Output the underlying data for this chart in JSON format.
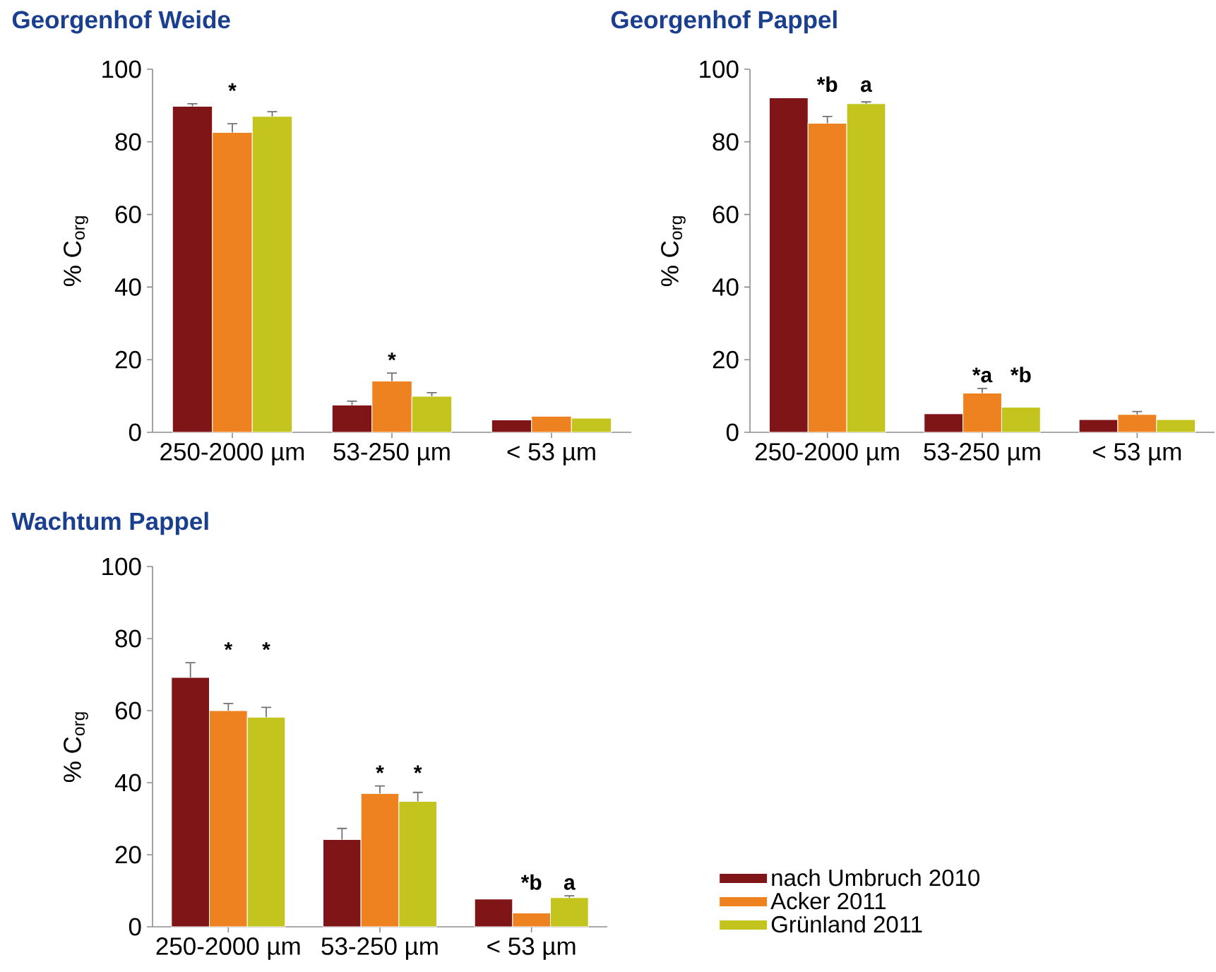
{
  "chart_data": [
    {
      "type": "bar",
      "title": "Georgenhof Weide",
      "ylabel": "% C$_{org}$",
      "categories": [
        "250-2000 µm",
        "53-250 µm",
        "< 53 µm"
      ],
      "ylim": [
        0,
        100
      ],
      "yticks": [
        0,
        20,
        40,
        60,
        80,
        100
      ],
      "series": [
        {
          "color": "#801518",
          "values": [
            89.8,
            7.5,
            3.4
          ],
          "errors": [
            [
              89.8,
              90.5
            ],
            [
              7.5,
              8.6
            ],
            null
          ]
        },
        {
          "color": "#ef8220",
          "values": [
            82.6,
            14.1,
            4.4
          ],
          "errors": [
            [
              82.6,
              85.0
            ],
            [
              14.1,
              16.3
            ],
            null
          ],
          "value_labels": [
            "*",
            "*",
            null
          ]
        },
        {
          "color": "#c3c51e",
          "values": [
            87.0,
            9.9,
            3.9
          ],
          "errors": [
            [
              87.0,
              88.3
            ],
            [
              9.9,
              10.9
            ],
            null
          ]
        }
      ]
    },
    {
      "type": "bar",
      "title": "Georgenhof Pappel",
      "ylabel": "% C$_{org}$",
      "categories": [
        "250-2000 µm",
        "53-250 µm",
        "< 53 µm"
      ],
      "ylim": [
        0,
        100
      ],
      "yticks": [
        0,
        20,
        40,
        60,
        80,
        100
      ],
      "series": [
        {
          "color": "#801518",
          "values": [
            92.1,
            5.1,
            3.5
          ]
        },
        {
          "color": "#ef8220",
          "values": [
            85.1,
            10.8,
            4.9
          ],
          "errors": [
            [
              85.1,
              87.0
            ],
            [
              10.8,
              12.1
            ],
            [
              4.9,
              5.7
            ]
          ],
          "value_labels": [
            "*b",
            "*a",
            null
          ]
        },
        {
          "color": "#c3c51e",
          "values": [
            90.5,
            6.9,
            3.5
          ],
          "errors": [
            [
              90.5,
              91.0
            ],
            null,
            null
          ],
          "value_labels": [
            "a",
            "*b",
            null
          ]
        }
      ]
    },
    {
      "type": "bar",
      "title": "Wachtum Pappel",
      "ylabel": "% C$_{org}$",
      "categories": [
        "250-2000 µm",
        "53-250 µm",
        "< 53 µm"
      ],
      "ylim": [
        0,
        100
      ],
      "yticks": [
        0,
        20,
        40,
        60,
        80,
        100
      ],
      "legend": "bottom right",
      "series": [
        {
          "name": "nach Umbruch 2010",
          "color": "#801518",
          "values": [
            69.2,
            24.2,
            7.7
          ],
          "errors": [
            [
              69.2,
              73.3
            ],
            [
              24.2,
              27.3
            ],
            null
          ]
        },
        {
          "name": "Acker 2011",
          "color": "#ef8220",
          "values": [
            60.0,
            37.0,
            3.8
          ],
          "errors": [
            [
              60.0,
              62.0
            ],
            [
              37.0,
              39.1
            ],
            null
          ],
          "value_labels": [
            "*",
            "*",
            "*b"
          ]
        },
        {
          "name": "Grünland 2011",
          "color": "#c3c51e",
          "values": [
            58.2,
            34.8,
            8.1
          ],
          "errors": [
            [
              58.2,
              60.9
            ],
            [
              34.8,
              37.3
            ],
            [
              8.1,
              8.6
            ]
          ],
          "value_labels": [
            "*",
            "*",
            "a"
          ]
        }
      ]
    }
  ]
}
